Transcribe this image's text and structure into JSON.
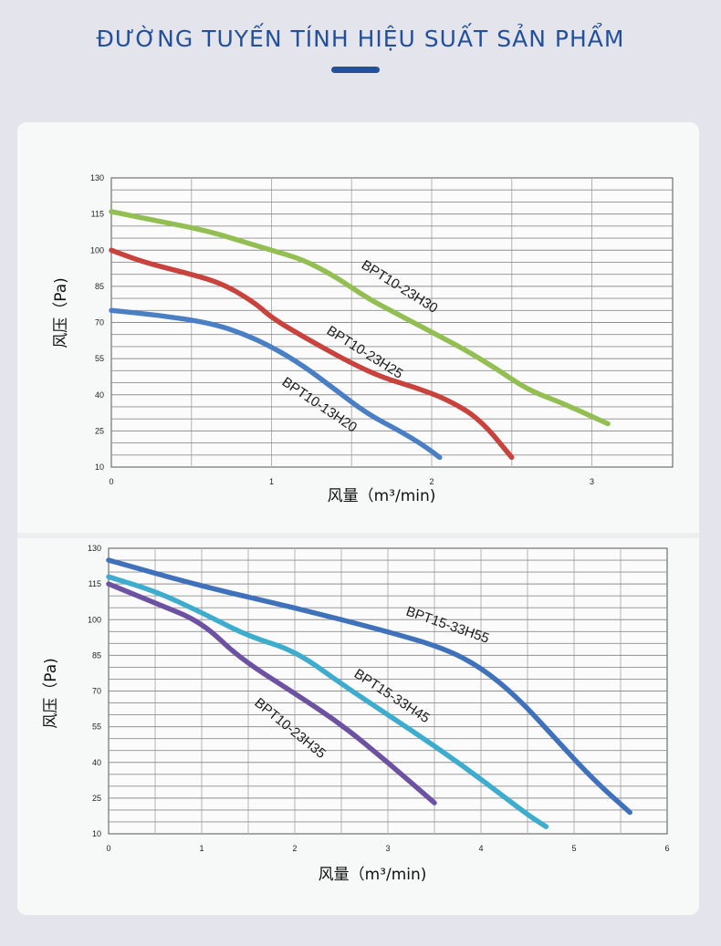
{
  "page": {
    "title": "ĐƯỜNG TUYẾN TÍNH HIỆU SUẤT SẢN PHẨM"
  },
  "chart_data": [
    {
      "type": "line",
      "xlabel": "风量（m³/min)",
      "ylabel": "风压（Pa)",
      "xlim": [
        0,
        3.5
      ],
      "ylim": [
        10,
        130
      ],
      "yticks": [
        10,
        25,
        40,
        55,
        70,
        85,
        100,
        115,
        130
      ],
      "xticks": [
        0,
        1,
        2,
        3
      ],
      "xtick_labels": [
        "0",
        "1",
        "2",
        "3"
      ],
      "grid": true,
      "series": [
        {
          "name": "BPT10-23H30",
          "color": "#93bf52",
          "x": [
            0,
            0.3,
            0.6,
            0.8,
            1.0,
            1.2,
            1.4,
            1.6,
            1.8,
            2.0,
            2.2,
            2.4,
            2.6,
            2.8,
            3.0,
            3.1
          ],
          "y": [
            116,
            112,
            108,
            104,
            100,
            96,
            89,
            80,
            73,
            66,
            59,
            51,
            42,
            37,
            31,
            28
          ]
        },
        {
          "name": "BPT10-23H25",
          "color": "#c8433e",
          "x": [
            0,
            0.2,
            0.5,
            0.7,
            0.9,
            1.0,
            1.2,
            1.5,
            1.7,
            1.9,
            2.1,
            2.3,
            2.5
          ],
          "y": [
            100,
            95,
            90,
            86,
            78,
            72,
            64,
            53,
            47,
            43,
            38,
            30,
            14
          ]
        },
        {
          "name": "BPT10-13H20",
          "color": "#4b7fc4",
          "x": [
            0,
            0.3,
            0.6,
            0.8,
            1.0,
            1.2,
            1.4,
            1.6,
            1.8,
            1.95,
            2.05
          ],
          "y": [
            75,
            73,
            70,
            66,
            60,
            52,
            42,
            32,
            25,
            19,
            14
          ]
        }
      ]
    },
    {
      "type": "line",
      "xlabel": "风量（m³/min)",
      "ylabel": "风压（Pa)",
      "xlim": [
        0,
        6
      ],
      "ylim": [
        10,
        130
      ],
      "yticks": [
        10,
        25,
        40,
        55,
        70,
        85,
        100,
        115,
        130
      ],
      "xticks": [
        0,
        1,
        2,
        3,
        4,
        5,
        6
      ],
      "xtick_labels": [
        "0",
        "1",
        "2",
        "3",
        "4",
        "5",
        "6"
      ],
      "grid": true,
      "series": [
        {
          "name": "BPT15-33H55",
          "color": "#3f72ba",
          "x": [
            0,
            1,
            2,
            3,
            3.6,
            4.0,
            4.4,
            4.8,
            5.2,
            5.6
          ],
          "y": [
            125,
            114,
            105,
            95,
            88,
            80,
            67,
            50,
            33,
            19
          ]
        },
        {
          "name": "BPT15-33H45",
          "color": "#3eaccd",
          "x": [
            0,
            0.5,
            1.0,
            1.5,
            2.0,
            2.5,
            3.0,
            3.5,
            4.0,
            4.5,
            4.7
          ],
          "y": [
            118,
            112,
            103,
            93,
            87,
            73,
            60,
            47,
            33,
            18,
            13
          ]
        },
        {
          "name": "BPT10-23H35",
          "color": "#6c52a0",
          "x": [
            0,
            0.5,
            1.0,
            1.4,
            2.0,
            2.5,
            3.0,
            3.5
          ],
          "y": [
            115,
            107,
            99,
            84,
            69,
            56,
            40,
            23
          ]
        }
      ]
    }
  ]
}
